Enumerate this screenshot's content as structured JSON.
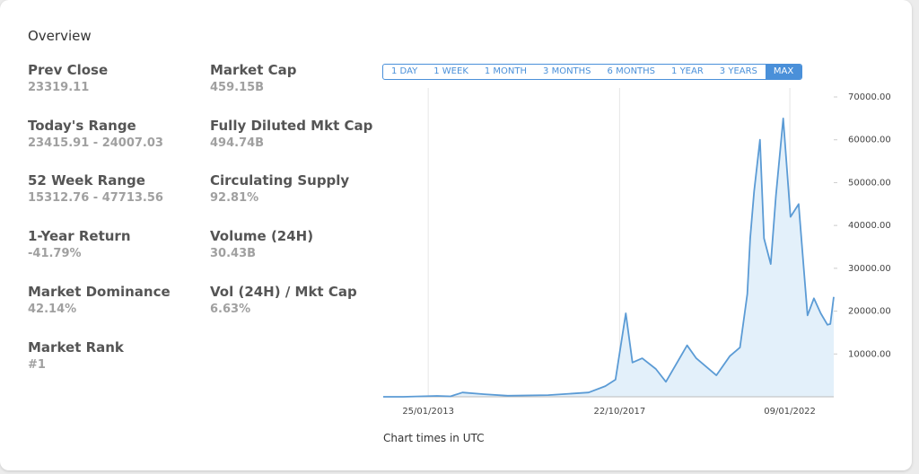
{
  "overview": {
    "title": "Overview",
    "columns": [
      [
        {
          "label": "Prev Close",
          "value": "23319.11"
        },
        {
          "label": "Today's Range",
          "value": "23415.91 - 24007.03"
        },
        {
          "label": "52 Week Range",
          "value": "15312.76 - 47713.56"
        },
        {
          "label": "1-Year Return",
          "value": "-41.79%"
        },
        {
          "label": "Market Dominance",
          "value": "42.14%"
        },
        {
          "label": "Market Rank",
          "value": "#1"
        }
      ],
      [
        {
          "label": "Market Cap",
          "value": "459.15B"
        },
        {
          "label": "Fully Diluted Mkt Cap",
          "value": "494.74B"
        },
        {
          "label": "Circulating Supply",
          "value": "92.81%"
        },
        {
          "label": "Volume (24H)",
          "value": "30.43B"
        },
        {
          "label": "Vol (24H) / Mkt Cap",
          "value": "6.63%"
        }
      ]
    ]
  },
  "ranges": {
    "buttons": [
      "1 DAY",
      "1 WEEK",
      "1 MONTH",
      "3 MONTHS",
      "6 MONTHS",
      "1 YEAR",
      "3 YEARS",
      "MAX"
    ],
    "active": 7
  },
  "chart": {
    "type": "line",
    "color": "#5b9bd5",
    "x": [
      "15/12/2011",
      "15/06/2012",
      "15/04/2013",
      "15/08/2013",
      "01/12/2013",
      "15/06/2014",
      "15/01/2015",
      "15/01/2016",
      "15/01/2017",
      "15/06/2017",
      "15/09/2017",
      "17/12/2017",
      "15/02/2018",
      "15/05/2018",
      "15/09/2018",
      "15/12/2018",
      "25/06/2019",
      "15/09/2019",
      "15/03/2020",
      "15/07/2020",
      "15/10/2020",
      "20/12/2020",
      "15/01/2021",
      "20/02/2021",
      "14/04/2021",
      "20/05/2021",
      "20/07/2021",
      "05/09/2021",
      "10/11/2021",
      "15/01/2022",
      "30/03/2022",
      "15/05/2022",
      "18/06/2022",
      "15/08/2022",
      "15/10/2022",
      "15/12/2022",
      "10/01/2023",
      "10/02/2023"
    ],
    "values": [
      6,
      7,
      200,
      110,
      1000,
      600,
      250,
      400,
      1000,
      2500,
      4000,
      19500,
      8000,
      9000,
      6500,
      3500,
      12000,
      9000,
      5000,
      9500,
      11500,
      24000,
      37000,
      48000,
      60000,
      37000,
      31000,
      47000,
      65000,
      42000,
      45000,
      30000,
      19000,
      23000,
      19500,
      16800,
      17000,
      23300
    ],
    "xlim": [
      "15/12/2011",
      "10/02/2023"
    ],
    "xticks": [
      "25/01/2013",
      "22/10/2017",
      "09/01/2022"
    ],
    "ylim": [
      0,
      70000
    ],
    "yticks": [
      {
        "value": 10000,
        "label": "10000.00"
      },
      {
        "value": 20000,
        "label": "20000.00"
      },
      {
        "value": 30000,
        "label": "30000.00"
      },
      {
        "value": 40000,
        "label": "40000.00"
      },
      {
        "value": 50000,
        "label": "50000.00"
      },
      {
        "value": 60000,
        "label": "60000.00"
      },
      {
        "value": 70000,
        "label": "70000.00"
      }
    ],
    "grid": true,
    "note": "Chart times in UTC"
  }
}
